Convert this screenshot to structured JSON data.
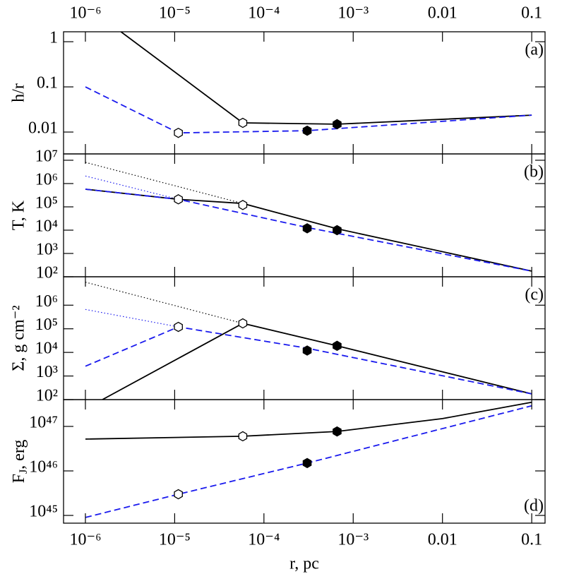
{
  "chart_data": [
    {
      "type": "line",
      "ylabel": "h/r",
      "annotation": "(a)",
      "annotation_corner": "top-right",
      "log_x": true,
      "log_y": true,
      "ylim": [
        0.00328,
        1.66
      ],
      "yticks": [
        1,
        0.1,
        0.01
      ],
      "series": [
        {
          "color": "#000000",
          "style": "solid",
          "x": [
            2.5e-06,
            5.8e-05,
            0.00066,
            0.1
          ],
          "values": [
            1.66,
            0.016,
            0.0149,
            0.0237
          ]
        },
        {
          "color": "#1a1aee",
          "style": "dashed",
          "x": [
            1e-06,
            1.1e-05,
            0.000305,
            0.1
          ],
          "values": [
            0.1,
            0.0096,
            0.0107,
            0.0237
          ]
        },
        {
          "color": "#000000",
          "style": "open-hexagon",
          "x": [
            1.1e-05,
            5.8e-05
          ],
          "values": [
            0.0096,
            0.016
          ]
        },
        {
          "color": "#000000",
          "style": "filled-hexagon",
          "x": [
            0.000305,
            0.00066
          ],
          "values": [
            0.0107,
            0.0149
          ]
        }
      ]
    },
    {
      "type": "line",
      "ylabel": "T, K",
      "annotation": "(b)",
      "annotation_corner": "top-right",
      "log_x": true,
      "log_y": true,
      "ylim": [
        100,
        18700000.0
      ],
      "yticks": [
        {
          "value": 10000000.0,
          "label": "10⁷"
        },
        {
          "value": 1000000.0,
          "label": "10⁶"
        },
        {
          "value": 100000.0,
          "label": "10⁵"
        },
        {
          "value": 10000.0,
          "label": "10⁴"
        },
        {
          "value": 1000.0,
          "label": "10³"
        },
        {
          "value": 100,
          "label": "10²"
        }
      ],
      "series": [
        {
          "color": "#000000",
          "style": "dotted",
          "x": [
            1e-06,
            5.8e-05
          ],
          "values": [
            8100000.0,
            140000.0
          ]
        },
        {
          "color": "#1a1aee",
          "style": "dotted",
          "x": [
            1e-06,
            1.1e-05
          ],
          "values": [
            2100000.0,
            210000.0
          ]
        },
        {
          "color": "#000000",
          "style": "solid",
          "x": [
            1e-06,
            1.1e-05,
            5.8e-05,
            0.00066,
            0.1
          ],
          "values": [
            570000.0,
            210000.0,
            140000.0,
            11500.0,
            175
          ]
        },
        {
          "color": "#1a1aee",
          "style": "dashed",
          "x": [
            1e-06,
            1.1e-05,
            0.000305,
            0.1
          ],
          "values": [
            570000.0,
            210000.0,
            13000.0,
            175
          ]
        },
        {
          "color": "#000000",
          "style": "open-hexagon",
          "x": [
            1.1e-05,
            5.8e-05
          ],
          "values": [
            210000.0,
            120000.0
          ]
        },
        {
          "color": "#000000",
          "style": "filled-hexagon",
          "x": [
            0.000305,
            0.00066
          ],
          "values": [
            12000.0,
            10000.0
          ]
        }
      ]
    },
    {
      "type": "line",
      "ylabel": "Σ, g cm⁻²",
      "annotation": "(c)",
      "annotation_corner": "top-right",
      "log_x": true,
      "log_y": true,
      "ylim": [
        100,
        16000000.0
      ],
      "yticks": [
        {
          "value": 1000000.0,
          "label": "10⁶"
        },
        {
          "value": 100000.0,
          "label": "10⁵"
        },
        {
          "value": 10000.0,
          "label": "10⁴"
        },
        {
          "value": 1000.0,
          "label": "10³"
        },
        {
          "value": 100,
          "label": "10²"
        }
      ],
      "series": [
        {
          "color": "#000000",
          "style": "dotted",
          "x": [
            1e-06,
            5.8e-05
          ],
          "values": [
            9400000.0,
            170000.0
          ]
        },
        {
          "color": "#1a1aee",
          "style": "dotted",
          "x": [
            1e-06,
            1.1e-05
          ],
          "values": [
            660000.0,
            120000.0
          ]
        },
        {
          "color": "#000000",
          "style": "solid",
          "x": [
            1.55e-06,
            5.8e-05,
            0.00066,
            0.1
          ],
          "values": [
            100,
            170000.0,
            19000.0,
            175
          ]
        },
        {
          "color": "#1a1aee",
          "style": "dashed",
          "x": [
            1e-06,
            1.1e-05,
            0.000305,
            0.1
          ],
          "values": [
            2600.0,
            120000.0,
            15000.0,
            175
          ]
        },
        {
          "color": "#000000",
          "style": "open-hexagon",
          "x": [
            1.1e-05,
            5.8e-05
          ],
          "values": [
            120000.0,
            170000.0
          ]
        },
        {
          "color": "#000000",
          "style": "filled-hexagon",
          "x": [
            0.000305,
            0.00066
          ],
          "values": [
            12000.0,
            19000.0
          ]
        }
      ]
    },
    {
      "type": "line",
      "ylabel": {
        "base": "F",
        "sub": "J",
        "rest": ", erg"
      },
      "annotation": "(d)",
      "annotation_corner": "bottom-right",
      "log_x": true,
      "log_y": true,
      "xlabel": "r, pc",
      "xlim": [
        5.69e-07,
        0.141
      ],
      "xticks": [
        {
          "value": 1e-06,
          "label": "10⁻⁶"
        },
        {
          "value": 1e-05,
          "label": "10⁻⁵"
        },
        {
          "value": 0.0001,
          "label": "10⁻⁴"
        },
        {
          "value": 0.001,
          "label": "10⁻³"
        },
        0.01,
        0.1
      ],
      "ylim": [
        6.7e+44,
        4e+47
      ],
      "yticks": [
        {
          "value": 1e+47,
          "label": "10⁴⁷"
        },
        {
          "value": 1e+46,
          "label": "10⁴⁶"
        },
        {
          "value": 1e+45,
          "label": "10⁴⁵"
        }
      ],
      "series": [
        {
          "color": "#000000",
          "style": "solid",
          "x": [
            1e-06,
            5.8e-05,
            0.00066,
            0.01,
            0.1
          ],
          "values": [
            5.2e+46,
            6e+46,
            7.7e+46,
            1.5e+47,
            3.5e+47
          ]
        },
        {
          "color": "#1a1aee",
          "style": "dashed",
          "x": [
            1e-06,
            1.1e-05,
            0.000305,
            0.1
          ],
          "values": [
            9e+44,
            3e+45,
            1.5e+46,
            2.9e+47
          ]
        },
        {
          "color": "#000000",
          "style": "open-hexagon",
          "x": [
            1.1e-05,
            5.8e-05
          ],
          "values": [
            3e+45,
            6e+46
          ]
        },
        {
          "color": "#000000",
          "style": "filled-hexagon",
          "x": [
            0.000305,
            0.00066
          ],
          "values": [
            1.5e+46,
            7.7e+46
          ]
        }
      ]
    }
  ]
}
